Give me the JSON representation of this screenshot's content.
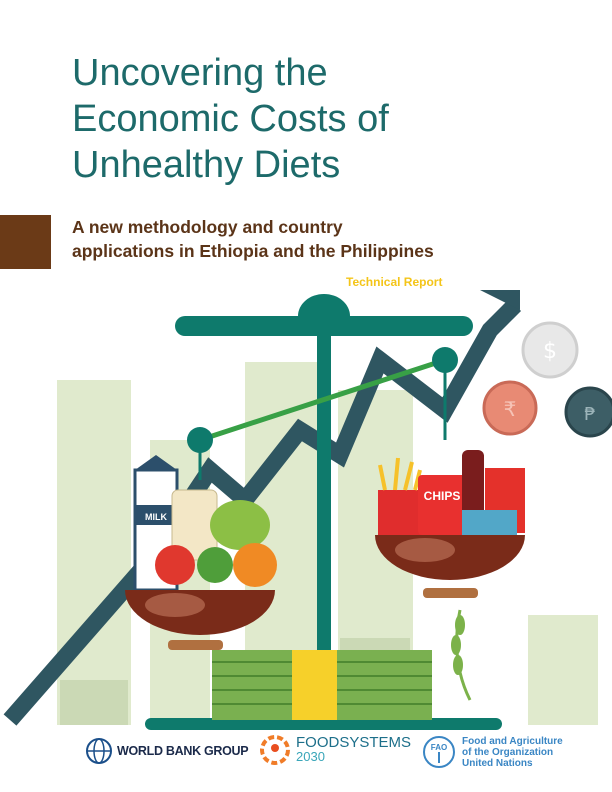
{
  "cover": {
    "title_lines": [
      "Uncovering the",
      "Economic Costs of",
      "Unhealthy Diets"
    ],
    "subtitle_lines": [
      "A new methodology and country",
      "applications in Ethiopia and the Philippines"
    ],
    "report_type": "Technical Report"
  },
  "illustration": {
    "milk_label": "MILK",
    "chips_label": "CHIPS",
    "colors": {
      "title": "#1d6a6a",
      "subtitle": "#5b3418",
      "accent_yellow": "#f4c519",
      "scale": "#0e7a6c",
      "arrow": "#2f5661",
      "bars": "#dfe9cc"
    }
  },
  "logos": {
    "world_bank": "WORLD BANK GROUP",
    "foodsystems_line1": "FOODSYSTEMS",
    "foodsystems_line2": "2030",
    "fao_lines": [
      "Food and Agriculture",
      "of the Organization",
      "United Nations"
    ],
    "fao_seal_text": "FAO"
  }
}
